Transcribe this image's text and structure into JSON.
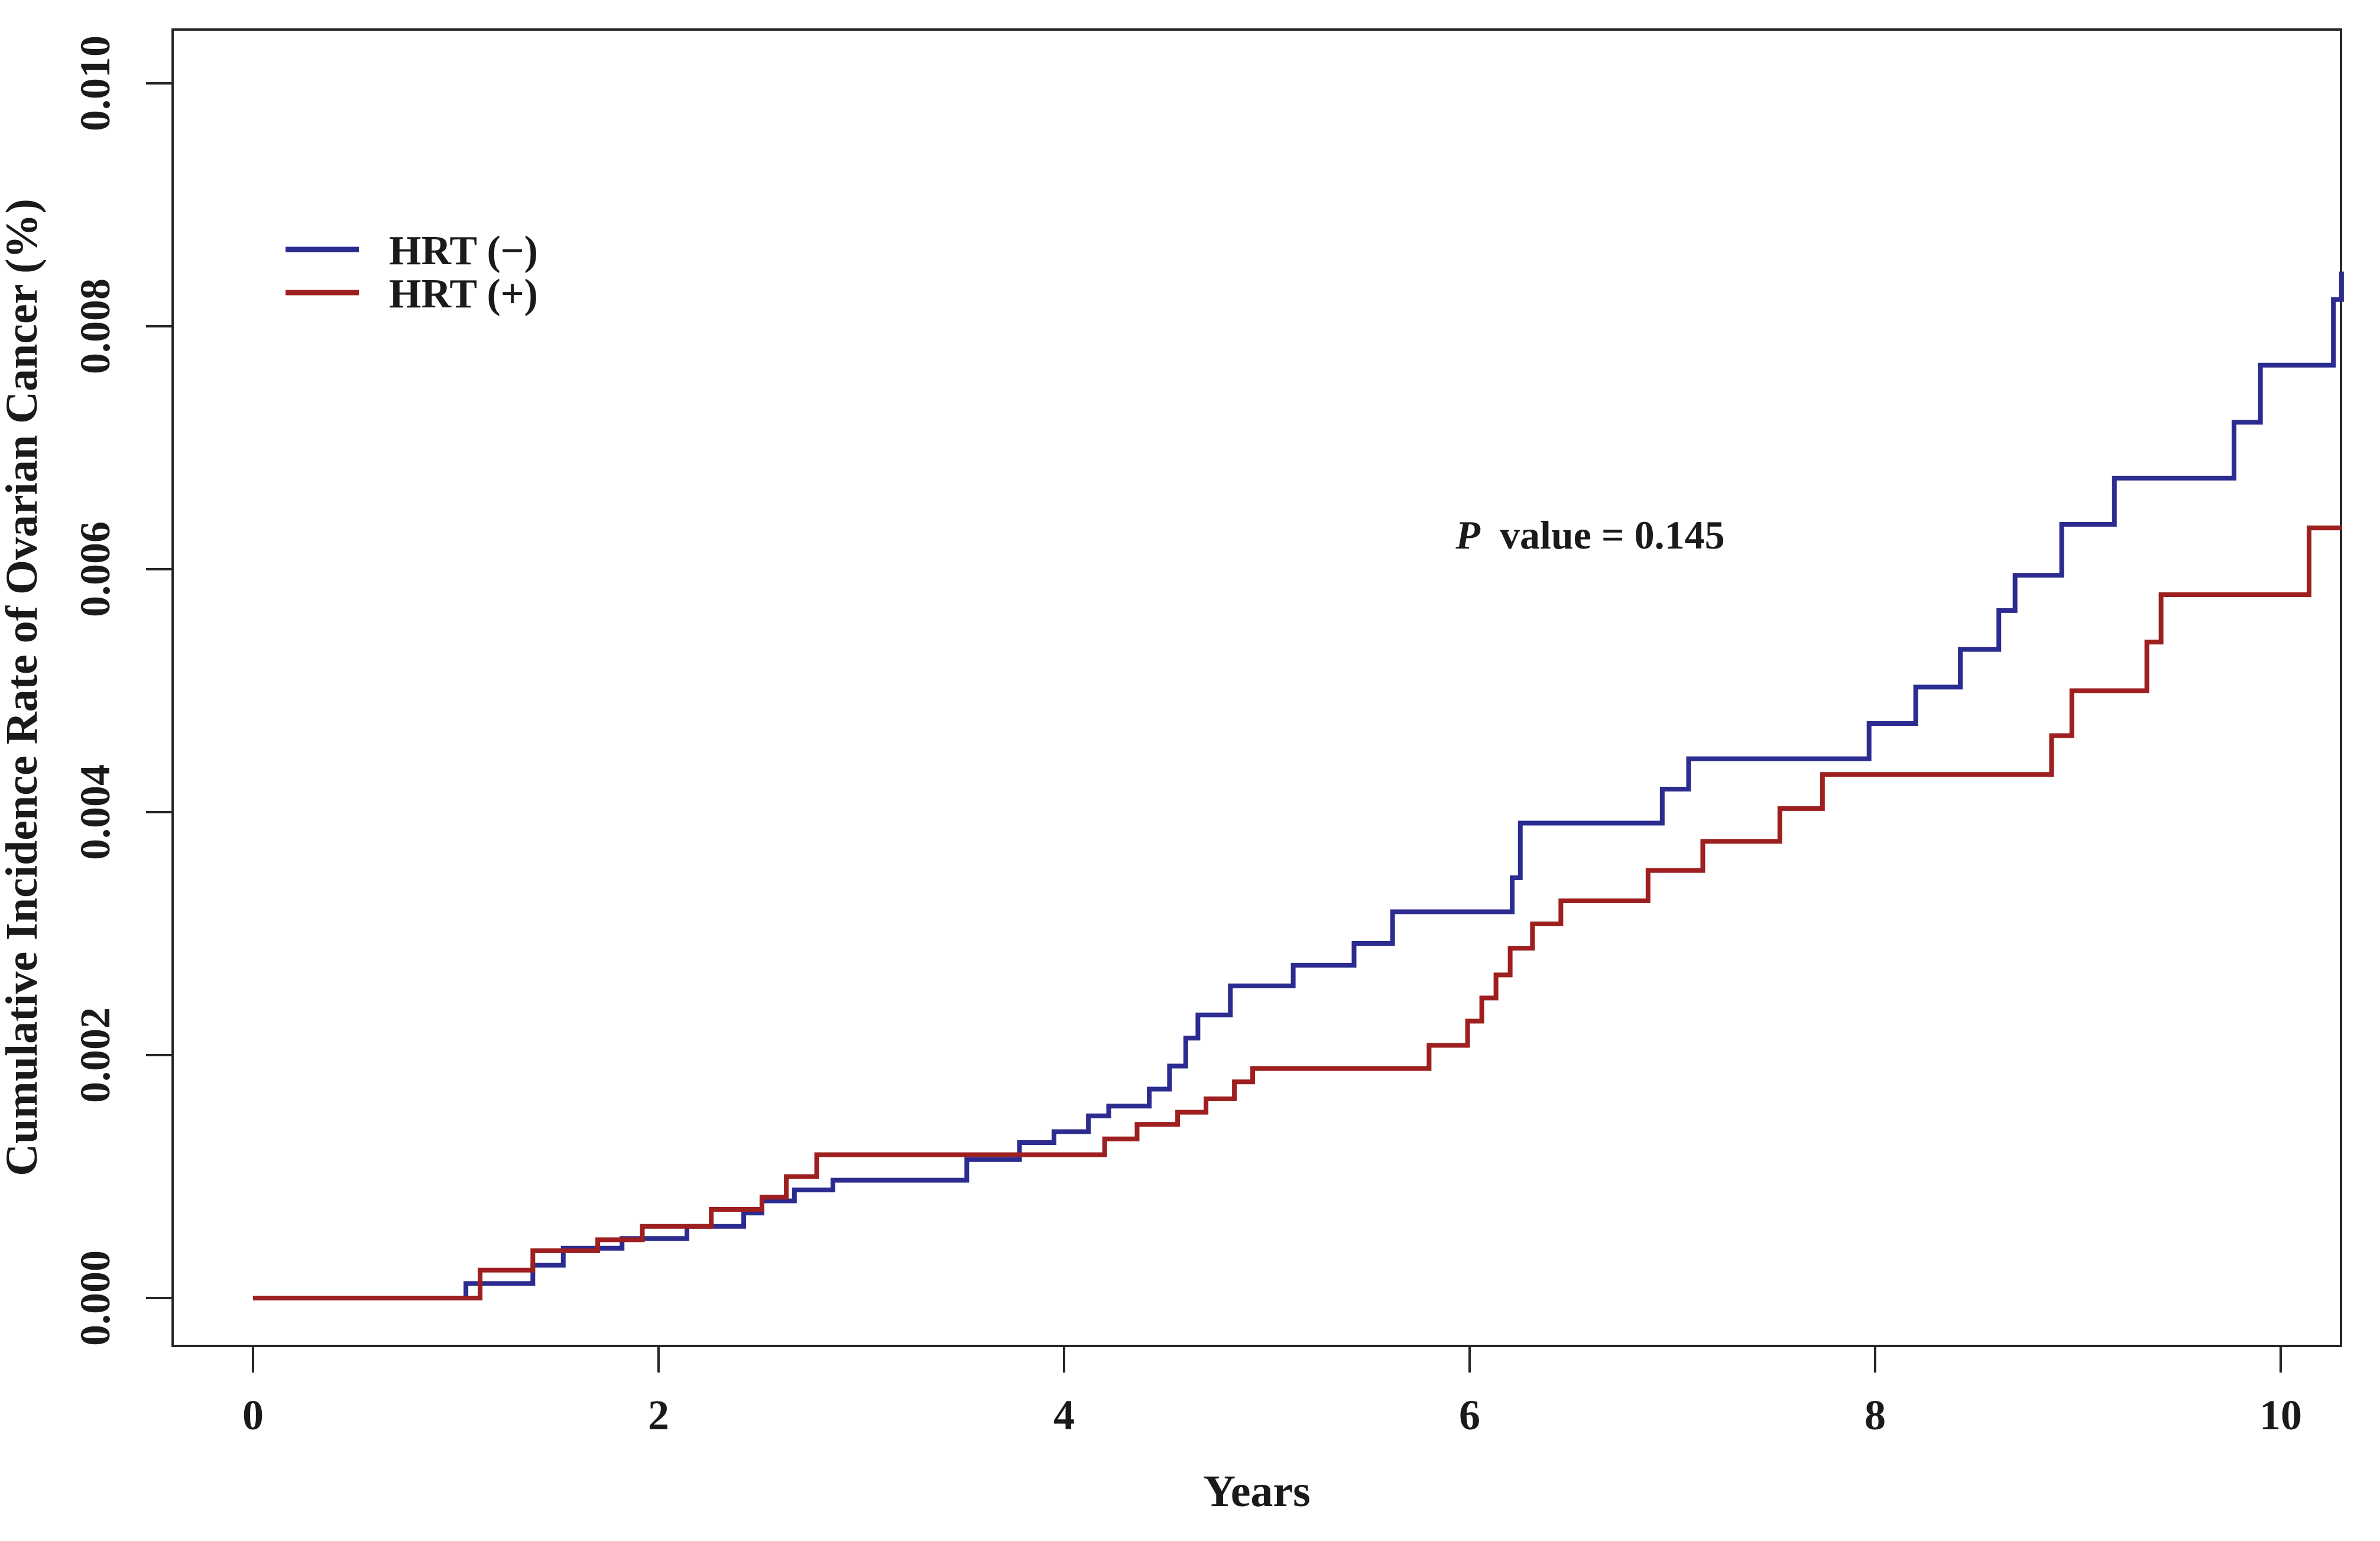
{
  "chart_data": {
    "type": "line",
    "line_style": "step-post",
    "title": "",
    "xlabel": "Years",
    "ylabel": "Cumulative Incidence Rate of Ovarian Cancer (%)",
    "x_ticks": [
      0,
      2,
      4,
      6,
      8,
      10
    ],
    "x_tick_labels": [
      "0",
      "2",
      "4",
      "6",
      "8",
      "10"
    ],
    "y_ticks": [
      0,
      0.002,
      0.004,
      0.006,
      0.008,
      0.01
    ],
    "y_tick_labels": [
      "0.000",
      "0.002",
      "0.004",
      "0.006",
      "0.008",
      "0.010"
    ],
    "xlim": [
      -0.4,
      10.3
    ],
    "ylim": [
      -0.0004,
      0.0105
    ],
    "grid": false,
    "axis_color": "#262626",
    "annotation": {
      "text": "P value = 0.145",
      "prefix_italic": "P",
      "suffix": "value = 0.145",
      "x": 6.6,
      "y": 0.0062
    },
    "legend": {
      "position": "upper-left-inside",
      "entries": [
        {
          "label": "HRT (−)",
          "color": "#2B2B90"
        },
        {
          "label": "HRT (+)",
          "color": "#9E1F1F"
        }
      ]
    },
    "series": [
      {
        "name": "HRT (−)",
        "color": "#2B2B90",
        "end_t": 10.3,
        "steps": [
          [
            0,
            0
          ],
          [
            1.05,
            0.00012
          ],
          [
            1.38,
            0.00027
          ],
          [
            1.53,
            0.00041
          ],
          [
            1.82,
            0.00049
          ],
          [
            2.14,
            0.00059
          ],
          [
            2.42,
            0.0007
          ],
          [
            2.51,
            0.0008
          ],
          [
            2.67,
            0.00089
          ],
          [
            2.86,
            0.00097
          ],
          [
            3.52,
            0.00114
          ],
          [
            3.78,
            0.00128
          ],
          [
            3.95,
            0.00137
          ],
          [
            4.12,
            0.0015
          ],
          [
            4.22,
            0.00158
          ],
          [
            4.42,
            0.00172
          ],
          [
            4.52,
            0.00191
          ],
          [
            4.6,
            0.00214
          ],
          [
            4.66,
            0.00233
          ],
          [
            4.82,
            0.00257
          ],
          [
            5.13,
            0.00274
          ],
          [
            5.43,
            0.00292
          ],
          [
            5.62,
            0.00318
          ],
          [
            6.21,
            0.00346
          ],
          [
            6.25,
            0.00391
          ],
          [
            6.95,
            0.00419
          ],
          [
            7.08,
            0.00444
          ],
          [
            7.97,
            0.00473
          ],
          [
            8.2,
            0.00503
          ],
          [
            8.42,
            0.00534
          ],
          [
            8.61,
            0.00566
          ],
          [
            8.69,
            0.00595
          ],
          [
            8.92,
            0.00637
          ],
          [
            9.18,
            0.00675
          ],
          [
            9.77,
            0.00721
          ],
          [
            9.9,
            0.00768
          ],
          [
            10.26,
            0.00822
          ],
          [
            10.3,
            0.00845
          ]
        ]
      },
      {
        "name": "HRT (+)",
        "color": "#9E1F1F",
        "end_t": 10.3,
        "steps": [
          [
            0,
            0
          ],
          [
            1.12,
            0.00023
          ],
          [
            1.38,
            0.00039
          ],
          [
            1.7,
            0.00048
          ],
          [
            1.92,
            0.00059
          ],
          [
            2.26,
            0.00073
          ],
          [
            2.51,
            0.00083
          ],
          [
            2.63,
            0.001
          ],
          [
            2.78,
            0.00118
          ],
          [
            4.2,
            0.00131
          ],
          [
            4.36,
            0.00143
          ],
          [
            4.56,
            0.00153
          ],
          [
            4.7,
            0.00164
          ],
          [
            4.84,
            0.00178
          ],
          [
            4.93,
            0.00189
          ],
          [
            5.8,
            0.00208
          ],
          [
            5.99,
            0.00228
          ],
          [
            6.06,
            0.00247
          ],
          [
            6.13,
            0.00266
          ],
          [
            6.2,
            0.00288
          ],
          [
            6.31,
            0.00308
          ],
          [
            6.45,
            0.00327
          ],
          [
            6.88,
            0.00352
          ],
          [
            7.15,
            0.00376
          ],
          [
            7.53,
            0.00403
          ],
          [
            7.74,
            0.00431
          ],
          [
            8.87,
            0.00463
          ],
          [
            8.97,
            0.005
          ],
          [
            9.34,
            0.0054
          ],
          [
            9.41,
            0.00579
          ],
          [
            10.14,
            0.00634
          ]
        ]
      }
    ]
  }
}
